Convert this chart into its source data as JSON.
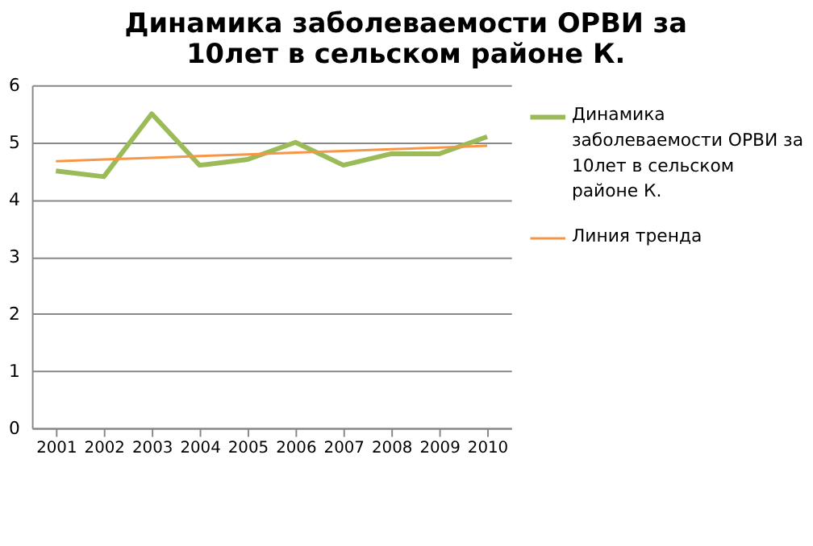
{
  "chart_data": {
    "type": "line",
    "title": "Динамика заболеваемости ОРВИ за 10лет в сельском районе К.",
    "categories": [
      "2001",
      "2002",
      "2003",
      "2004",
      "2005",
      "2006",
      "2007",
      "2008",
      "2009",
      "2010"
    ],
    "series": [
      {
        "name": "Динамика заболеваемости ОРВИ за 10лет в сельском районе К.",
        "color": "#9bbb59",
        "values": [
          4.5,
          4.4,
          5.5,
          4.6,
          4.7,
          5.0,
          4.6,
          4.8,
          4.8,
          5.1
        ]
      },
      {
        "name": "Линия тренда",
        "color": "#f79646",
        "type": "line",
        "values": [
          4.67,
          4.7,
          4.73,
          4.76,
          4.79,
          4.82,
          4.85,
          4.88,
          4.91,
          4.94
        ]
      }
    ],
    "ylim": [
      0,
      6
    ],
    "yticks": [
      0,
      1,
      2,
      3,
      4,
      5,
      6
    ],
    "grid": "y",
    "legend": "right",
    "marker": "none",
    "line_style": "solid"
  }
}
